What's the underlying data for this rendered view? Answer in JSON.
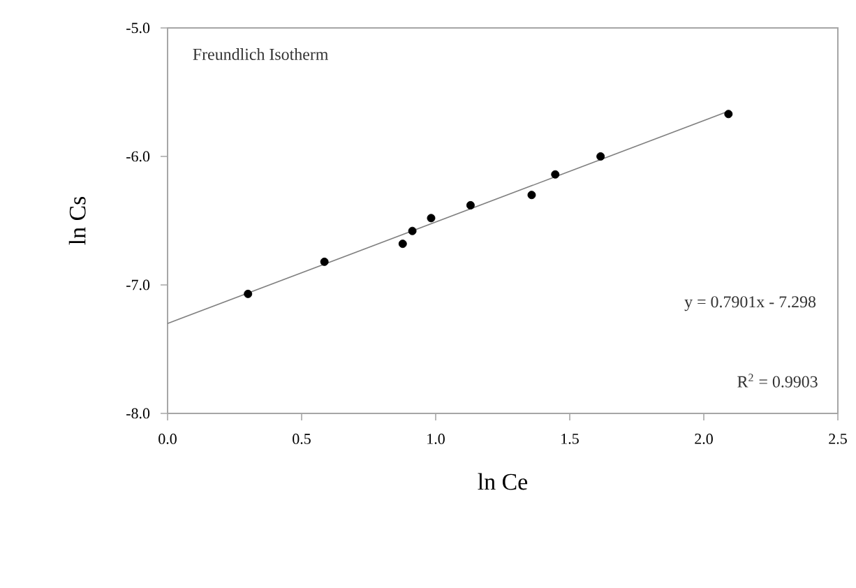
{
  "chart_data": {
    "type": "scatter",
    "xlabel": "ln Ce",
    "ylabel": "ln Cs",
    "annotations": [
      "Freundlich Isotherm",
      "y = 0.7901x - 7.298",
      "R$^{2}$ = 0.9903"
    ],
    "series": [
      {
        "color": "#000000",
        "x": [
          0.3,
          0.585,
          0.877,
          0.913,
          0.983,
          1.13,
          1.358,
          1.446,
          1.615,
          2.092
        ],
        "values": [
          -7.07,
          -6.82,
          -6.68,
          -6.58,
          -6.48,
          -6.38,
          -6.3,
          -6.14,
          -6.0,
          -5.67
        ]
      },
      {
        "type": "line",
        "color": "#808080",
        "marker": "none",
        "x": [
          0.0,
          2.09
        ],
        "values": [
          -7.3,
          -5.65
        ]
      }
    ],
    "marker": "circle",
    "xlim": [
      0.0,
      2.5
    ],
    "ylim": [
      -8.0,
      -5.0
    ],
    "xticks": [
      {
        "value": 0,
        "label": "0.0"
      },
      0.5,
      {
        "value": 1,
        "label": "1.0"
      },
      1.5,
      {
        "value": 2,
        "label": "2.0"
      },
      2.5
    ],
    "yticks": [
      {
        "value": -8,
        "label": "-8.0"
      },
      {
        "value": -7,
        "label": "-7.0"
      },
      {
        "value": -6,
        "label": "-6.0"
      },
      {
        "value": -5,
        "label": "-5.0"
      }
    ]
  }
}
